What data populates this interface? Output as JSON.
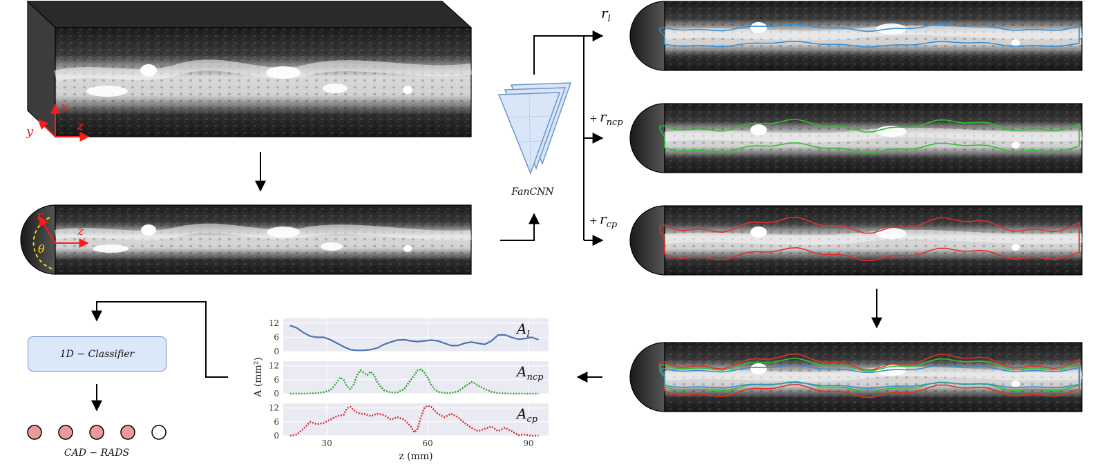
{
  "axes3d": {
    "x": "x",
    "y": "y",
    "z": "z"
  },
  "polar_axes": {
    "r": "r",
    "theta": "θ",
    "z": "z"
  },
  "network_label": "FanCNN",
  "outputs": [
    {
      "prefix": "",
      "label": "r",
      "sub": "l",
      "color": "#3a8fd0"
    },
    {
      "prefix": "+",
      "label": "r",
      "sub": "ncp",
      "color": "#2fc02f"
    },
    {
      "prefix": "+",
      "label": "r",
      "sub": "cp",
      "color": "#e0302a"
    }
  ],
  "classifier_label": "1D − Classifier",
  "cadrads_label": "CAD − RADS",
  "cadrads_circles": [
    {
      "filled": true,
      "color": "#eb9a98"
    },
    {
      "filled": true,
      "color": "#eb9a98"
    },
    {
      "filled": true,
      "color": "#eb9a98"
    },
    {
      "filled": true,
      "color": "#eb9a98"
    },
    {
      "filled": false,
      "color": "#ffffff"
    }
  ],
  "chart_data": {
    "type": "line",
    "xlabel": "z (mm)",
    "ylabel": "A (mm²)",
    "xticks": [
      30,
      60,
      90
    ],
    "yticks": [
      0,
      6,
      12
    ],
    "xlim": [
      17,
      96
    ],
    "ylim": [
      0,
      14
    ],
    "grid": true,
    "series": [
      {
        "name": "A_l",
        "label": "A",
        "sub": "l",
        "color": "#4c72b0",
        "style": "solid",
        "x": [
          19,
          21,
          23,
          25,
          27,
          29,
          31,
          33,
          35,
          37,
          39,
          41,
          43,
          45,
          47,
          49,
          51,
          53,
          55,
          57,
          59,
          61,
          63,
          65,
          67,
          69,
          71,
          73,
          75,
          77,
          79,
          81,
          83,
          85,
          87,
          89,
          91,
          93
        ],
        "y": [
          11,
          10,
          8,
          6.5,
          6,
          6,
          5,
          3.5,
          2,
          0.8,
          0.5,
          0.5,
          0.8,
          1.5,
          3,
          4,
          4.8,
          5,
          4.5,
          4.2,
          4.5,
          4.8,
          4.5,
          3.5,
          2.5,
          2.5,
          3.5,
          4,
          3.5,
          3,
          4.5,
          7,
          7,
          6,
          5.2,
          5.5,
          6,
          5
        ]
      },
      {
        "name": "A_ncp",
        "label": "A",
        "sub": "ncp",
        "color": "#2ca02c",
        "style": "dotted",
        "x": [
          19,
          23,
          27,
          29,
          31,
          32,
          33,
          34,
          35,
          36,
          37,
          38,
          39,
          40,
          41,
          42,
          43,
          44,
          45,
          46,
          47,
          49,
          51,
          53,
          55,
          56,
          57,
          58,
          59,
          60,
          61,
          62,
          63,
          65,
          67,
          69,
          70,
          71,
          72,
          73,
          74,
          75,
          77,
          79,
          81,
          85,
          93
        ],
        "y": [
          0,
          0,
          0.2,
          0.6,
          1.5,
          3,
          5,
          7,
          6,
          3,
          2,
          4,
          8,
          10,
          9,
          8,
          9.5,
          8,
          5,
          3,
          1.5,
          0.5,
          0.5,
          2,
          6,
          8,
          10,
          10.5,
          9,
          7,
          4,
          2,
          0.8,
          0.3,
          0.2,
          1,
          2,
          3,
          4,
          5,
          4.5,
          3.5,
          2,
          0.8,
          0.2,
          0,
          0
        ]
      },
      {
        "name": "A_cp",
        "label": "A",
        "sub": "cp",
        "color": "#d62728",
        "style": "dotted",
        "x": [
          19,
          21,
          23,
          25,
          27,
          29,
          31,
          33,
          35,
          36,
          37,
          38,
          39,
          40,
          41,
          43,
          45,
          47,
          49,
          51,
          53,
          55,
          56,
          57,
          58,
          59,
          60,
          61,
          62,
          63,
          65,
          67,
          69,
          71,
          73,
          75,
          77,
          79,
          81,
          83,
          85,
          87,
          89,
          91,
          93
        ],
        "y": [
          0,
          0.5,
          3,
          6,
          5,
          5.5,
          7,
          8.5,
          9,
          12,
          12.5,
          11,
          10,
          9.5,
          9.5,
          8.5,
          9.5,
          9,
          7,
          8,
          7,
          4,
          1.5,
          3,
          8,
          12,
          13,
          12.5,
          11,
          9.5,
          8,
          9.5,
          8,
          5.5,
          3.5,
          2,
          3,
          4,
          2,
          3.5,
          2,
          0.3,
          0.5,
          0,
          0
        ]
      }
    ]
  }
}
